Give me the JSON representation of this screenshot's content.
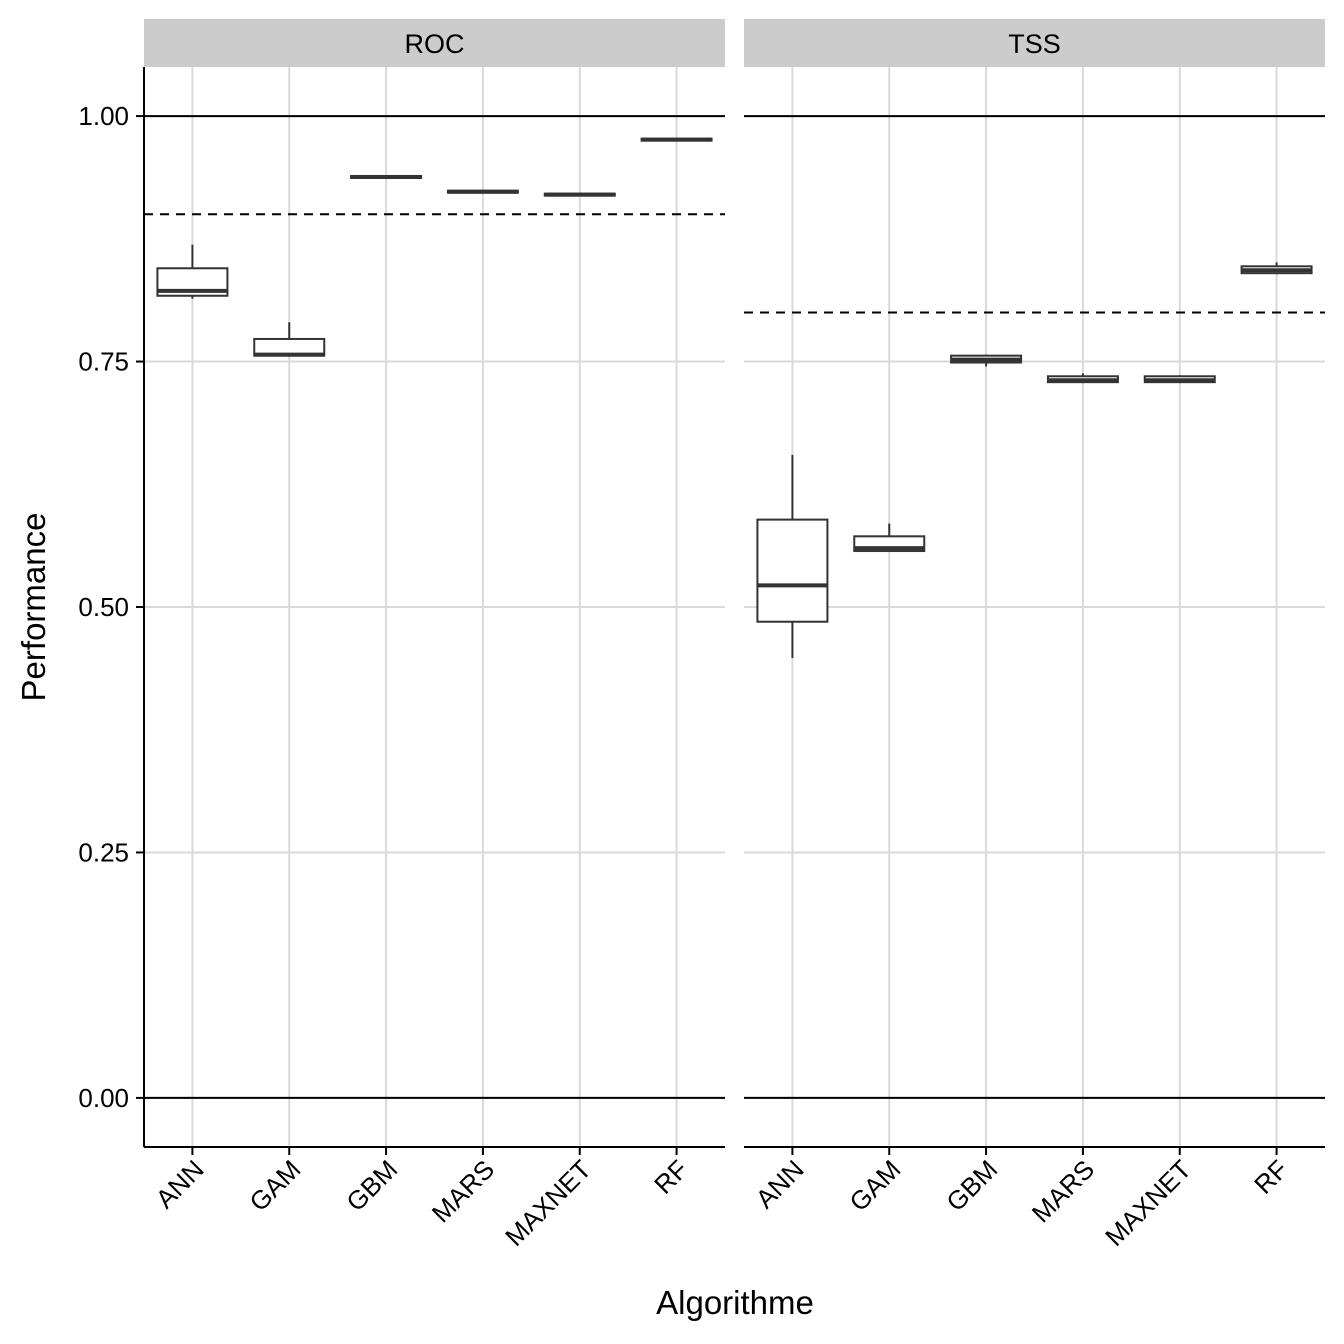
{
  "chart_data": {
    "type": "boxplot",
    "xlabel": "Algorithme",
    "ylabel": "Performance",
    "ylim": [
      -0.05,
      1.05
    ],
    "y_ticks": [
      0,
      0.25,
      0.5,
      0.75,
      1.0
    ],
    "y_tick_labels": [
      "0.00",
      "0.25",
      "0.50",
      "0.75",
      "1.00"
    ],
    "categories": [
      "ANN",
      "GAM",
      "GBM",
      "MARS",
      "MAXNET",
      "RF"
    ],
    "reference_lines_solid": [
      0,
      1
    ],
    "colors": {
      "strip": "#cccccc",
      "grid": "#d9d9d9",
      "box": "#333333"
    },
    "panels": [
      {
        "strip": "ROC",
        "threshold_dashed": 0.9,
        "boxes": [
          {
            "category": "ANN",
            "ymin": 0.814,
            "lower": 0.817,
            "median": 0.822,
            "upper": 0.845,
            "ymax": 0.869
          },
          {
            "category": "GAM",
            "ymin": 0.755,
            "lower": 0.756,
            "median": 0.757,
            "upper": 0.773,
            "ymax": 0.79
          },
          {
            "category": "GBM",
            "ymin": 0.937,
            "lower": 0.937,
            "median": 0.938,
            "upper": 0.939,
            "ymax": 0.94
          },
          {
            "category": "MARS",
            "ymin": 0.922,
            "lower": 0.922,
            "median": 0.923,
            "upper": 0.924,
            "ymax": 0.925
          },
          {
            "category": "MAXNET",
            "ymin": 0.919,
            "lower": 0.919,
            "median": 0.92,
            "upper": 0.921,
            "ymax": 0.922
          },
          {
            "category": "RF",
            "ymin": 0.975,
            "lower": 0.975,
            "median": 0.976,
            "upper": 0.977,
            "ymax": 0.977
          }
        ]
      },
      {
        "strip": "TSS",
        "threshold_dashed": 0.8,
        "boxes": [
          {
            "category": "ANN",
            "ymin": 0.448,
            "lower": 0.485,
            "median": 0.522,
            "upper": 0.589,
            "ymax": 0.655
          },
          {
            "category": "GAM",
            "ymin": 0.556,
            "lower": 0.557,
            "median": 0.56,
            "upper": 0.572,
            "ymax": 0.585
          },
          {
            "category": "GBM",
            "ymin": 0.745,
            "lower": 0.749,
            "median": 0.752,
            "upper": 0.756,
            "ymax": 0.757
          },
          {
            "category": "MARS",
            "ymin": 0.728,
            "lower": 0.729,
            "median": 0.731,
            "upper": 0.735,
            "ymax": 0.738
          },
          {
            "category": "MAXNET",
            "ymin": 0.728,
            "lower": 0.729,
            "median": 0.731,
            "upper": 0.735,
            "ymax": 0.736
          },
          {
            "category": "RF",
            "ymin": 0.839,
            "lower": 0.84,
            "median": 0.843,
            "upper": 0.847,
            "ymax": 0.851
          }
        ]
      }
    ]
  }
}
